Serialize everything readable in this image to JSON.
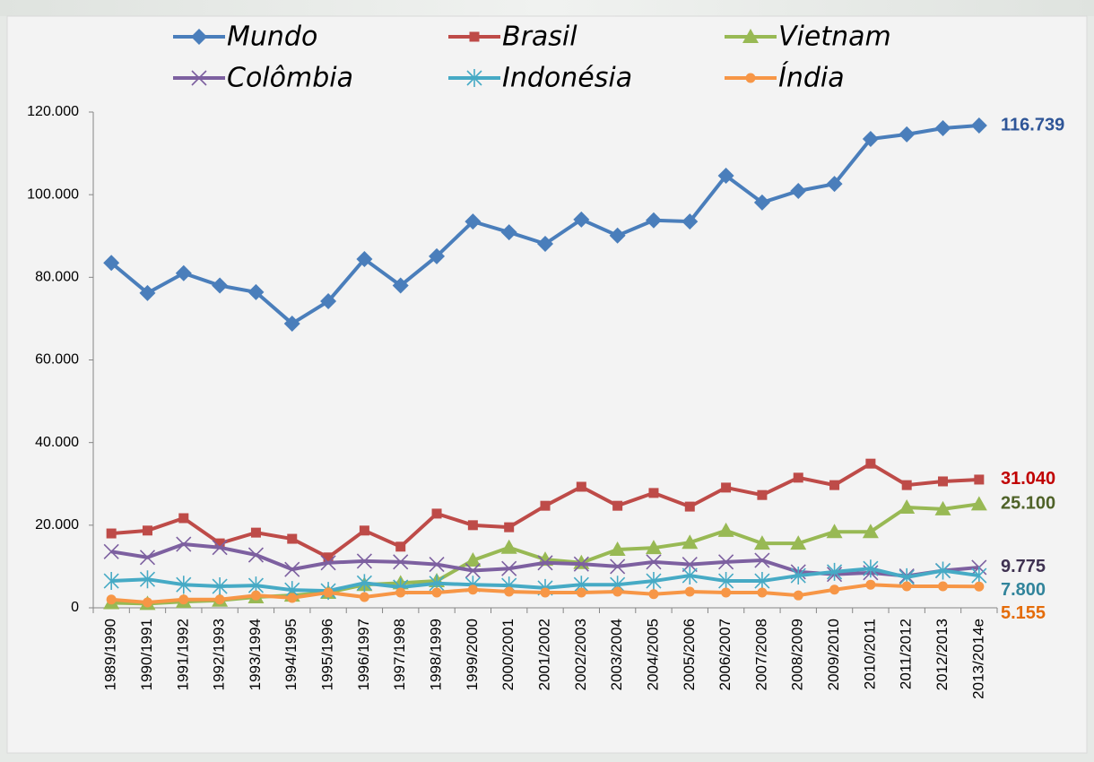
{
  "chart_data": {
    "type": "line",
    "categories": [
      "1989/1990",
      "1990/1991",
      "1991/1992",
      "1992/1993",
      "1993/1994",
      "1994/1995",
      "1995/1996",
      "1996/1997",
      "1997/1998",
      "1998/1999",
      "1999/2000",
      "2000/2001",
      "2001/2002",
      "2002/2003",
      "2003/2004",
      "2004/2005",
      "2005/2006",
      "2006/2007",
      "2007/2008",
      "2008/2009",
      "2009/2010",
      "2010/2011",
      "2011/2012",
      "2012/2013",
      "2013/2014e"
    ],
    "ylim": [
      0,
      120000
    ],
    "yticks": [
      0,
      {
        "value": 20000,
        "label": "20.000"
      },
      {
        "value": 40000,
        "label": "40.000"
      },
      {
        "value": 60000,
        "label": "60.000"
      },
      {
        "value": 80000,
        "label": "80.000"
      },
      {
        "value": 100000,
        "label": "100.000"
      },
      {
        "value": 120000,
        "label": "120.000"
      }
    ],
    "grid": false,
    "legend": "top",
    "series": [
      {
        "name": "Mundo",
        "color": "#4a7ebb",
        "label_color": "#2e5597",
        "marker": "diamond",
        "values": [
          83500,
          76200,
          81000,
          78000,
          76400,
          68800,
          74200,
          84400,
          78000,
          85100,
          93500,
          90900,
          88100,
          94000,
          90100,
          93800,
          93500,
          104600,
          98100,
          100900,
          102600,
          113500,
          114600,
          116100,
          116739
        ],
        "value_labels": [
          null,
          null,
          null,
          null,
          null,
          null,
          null,
          null,
          null,
          null,
          null,
          null,
          null,
          null,
          null,
          null,
          null,
          null,
          null,
          null,
          null,
          null,
          null,
          null,
          "116.739"
        ]
      },
      {
        "name": "Brasil",
        "color": "#be4b48",
        "label_color": "#c00000",
        "marker": "square",
        "values": [
          18000,
          18700,
          21700,
          15600,
          18200,
          16700,
          12200,
          18700,
          14800,
          22800,
          20000,
          19500,
          24700,
          29300,
          24700,
          27800,
          24500,
          29100,
          27300,
          31500,
          29700,
          34900,
          29700,
          30600,
          31040
        ],
        "value_labels": [
          null,
          null,
          null,
          null,
          null,
          null,
          null,
          null,
          null,
          null,
          null,
          null,
          null,
          null,
          null,
          null,
          null,
          null,
          null,
          null,
          null,
          null,
          null,
          null,
          "31.040"
        ]
      },
      {
        "name": "Vietnam",
        "color": "#98b954",
        "label_color": "#4f6228",
        "marker": "triangle",
        "values": [
          1200,
          1000,
          1500,
          1800,
          2600,
          3000,
          3700,
          5600,
          6000,
          6500,
          11500,
          14600,
          11700,
          10900,
          14100,
          14500,
          15800,
          18700,
          15600,
          15600,
          18400,
          18400,
          24300,
          23900,
          25100
        ],
        "value_labels": [
          null,
          null,
          null,
          null,
          null,
          null,
          null,
          null,
          null,
          null,
          null,
          null,
          null,
          null,
          null,
          null,
          null,
          null,
          null,
          null,
          null,
          null,
          null,
          null,
          "25.100"
        ]
      },
      {
        "name": "Colômbia",
        "color": "#7d60a0",
        "label_color": "#3f3151",
        "marker": "x",
        "values": [
          13600,
          12200,
          15400,
          14600,
          12800,
          9300,
          10900,
          11300,
          11100,
          10500,
          9000,
          9500,
          10900,
          10600,
          10000,
          11100,
          10500,
          11100,
          11500,
          8700,
          8100,
          8500,
          7700,
          9000,
          9775
        ],
        "value_labels": [
          null,
          null,
          null,
          null,
          null,
          null,
          null,
          null,
          null,
          null,
          null,
          null,
          null,
          null,
          null,
          null,
          null,
          null,
          null,
          null,
          null,
          null,
          null,
          null,
          "9.775"
        ]
      },
      {
        "name": "Indonésia",
        "color": "#46aac5",
        "label_color": "#31849b",
        "marker": "star",
        "values": [
          6500,
          6900,
          5600,
          5200,
          5400,
          4300,
          4100,
          6000,
          5000,
          5900,
          5600,
          5400,
          4800,
          5600,
          5600,
          6500,
          7800,
          6500,
          6500,
          7800,
          8700,
          9500,
          7400,
          9000,
          7800
        ],
        "value_labels": [
          null,
          null,
          null,
          null,
          null,
          null,
          null,
          null,
          null,
          null,
          null,
          null,
          null,
          null,
          null,
          null,
          null,
          null,
          null,
          null,
          null,
          null,
          null,
          null,
          "7.800"
        ]
      },
      {
        "name": "Índia",
        "color": "#f79646",
        "label_color": "#e46c0a",
        "marker": "circle",
        "values": [
          2000,
          1300,
          2000,
          2000,
          3000,
          2400,
          3700,
          2600,
          3700,
          3700,
          4400,
          3900,
          3700,
          3700,
          3900,
          3300,
          3900,
          3700,
          3700,
          3000,
          4400,
          5600,
          5200,
          5200,
          5155
        ],
        "value_labels": [
          null,
          null,
          null,
          null,
          null,
          null,
          null,
          null,
          null,
          null,
          null,
          null,
          null,
          null,
          null,
          null,
          null,
          null,
          null,
          null,
          null,
          null,
          null,
          null,
          "5.155"
        ]
      }
    ]
  }
}
